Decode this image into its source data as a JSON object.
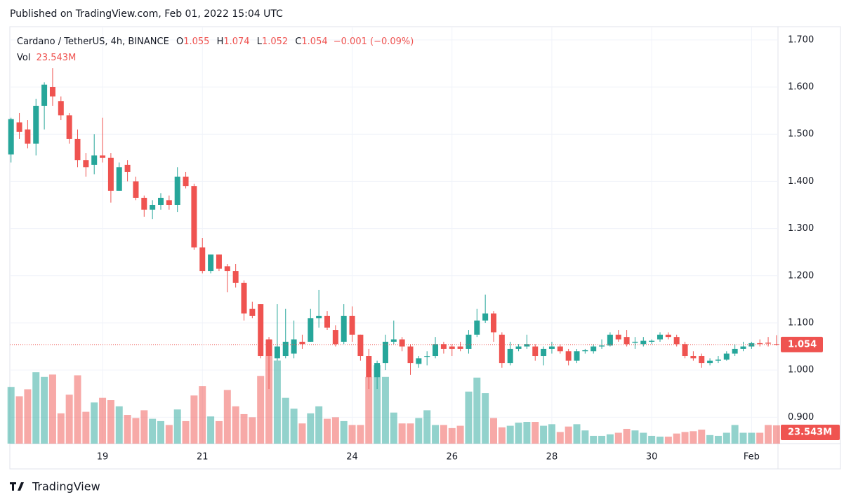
{
  "header": {
    "published": "Published on TradingView.com, Feb 01, 2022 15:04 UTC"
  },
  "footer": {
    "brand": "TradingView"
  },
  "chart_data": {
    "type": "candlestick",
    "legend": {
      "symbol": "Cardano / TetherUS, 4h, BINANCE",
      "labels": [
        "O",
        "H",
        "L",
        "C"
      ],
      "change": "−0.001 (−0.09%)",
      "volume_name": "Vol",
      "volume": "23.543M"
    },
    "up_color": "#26a69a",
    "down_color": "#ef5350",
    "grid": true,
    "categories": [
      null,
      null,
      null,
      null,
      null,
      null,
      null,
      null,
      null,
      null,
      null,
      "19",
      null,
      null,
      null,
      null,
      null,
      null,
      null,
      null,
      null,
      null,
      null,
      "21",
      null,
      null,
      null,
      null,
      null,
      null,
      null,
      null,
      null,
      null,
      null,
      null,
      null,
      null,
      null,
      null,
      null,
      "24",
      null,
      null,
      null,
      null,
      null,
      null,
      null,
      null,
      null,
      null,
      null,
      "26",
      null,
      null,
      null,
      null,
      null,
      null,
      null,
      null,
      null,
      null,
      null,
      "28",
      null,
      null,
      null,
      null,
      null,
      null,
      null,
      null,
      null,
      null,
      null,
      "30",
      null,
      null,
      null,
      null,
      null,
      null,
      null,
      null,
      null,
      null,
      null,
      "Feb",
      null,
      null,
      null
    ],
    "open": [
      1.457,
      1.525,
      1.51,
      1.48,
      1.56,
      1.6,
      1.57,
      1.54,
      1.49,
      1.445,
      1.435,
      1.455,
      1.45,
      1.38,
      1.435,
      1.4,
      1.365,
      1.34,
      1.35,
      1.36,
      1.35,
      1.41,
      1.39,
      1.26,
      1.21,
      1.245,
      1.22,
      1.21,
      1.185,
      1.13,
      1.14,
      1.065,
      1.025,
      1.03,
      1.035,
      1.06,
      1.06,
      1.11,
      1.115,
      1.085,
      1.06,
      1.115,
      1.075,
      1.03,
      0.985,
      1.015,
      1.06,
      1.065,
      1.05,
      1.013,
      1.028,
      1.03,
      1.055,
      1.05,
      1.05,
      1.045,
      1.075,
      1.105,
      1.12,
      1.075,
      1.015,
      1.045,
      1.05,
      1.05,
      1.03,
      1.045,
      1.05,
      1.04,
      1.02,
      1.04,
      1.04,
      1.05,
      1.052,
      1.075,
      1.07,
      1.058,
      1.055,
      1.06,
      1.065,
      1.075,
      1.07,
      1.055,
      1.03,
      1.03,
      1.015,
      1.02,
      1.022,
      1.035,
      1.045,
      1.05,
      1.057,
      1.058,
      1.055
    ],
    "high": [
      1.535,
      1.545,
      1.53,
      1.575,
      1.61,
      1.64,
      1.58,
      1.545,
      1.51,
      1.46,
      1.5,
      1.535,
      1.46,
      1.44,
      1.445,
      1.41,
      1.37,
      1.36,
      1.375,
      1.37,
      1.43,
      1.42,
      1.395,
      1.28,
      1.245,
      1.245,
      1.225,
      1.225,
      1.19,
      1.145,
      1.14,
      1.07,
      1.14,
      1.13,
      1.105,
      1.075,
      1.13,
      1.17,
      1.125,
      1.095,
      1.14,
      1.135,
      1.075,
      1.045,
      1.02,
      1.075,
      1.105,
      1.07,
      1.055,
      1.03,
      1.04,
      1.07,
      1.06,
      1.055,
      1.06,
      1.085,
      1.13,
      1.16,
      1.125,
      1.08,
      1.06,
      1.055,
      1.075,
      1.055,
      1.05,
      1.06,
      1.055,
      1.045,
      1.045,
      1.045,
      1.055,
      1.065,
      1.08,
      1.085,
      1.085,
      1.07,
      1.07,
      1.065,
      1.08,
      1.08,
      1.075,
      1.06,
      1.04,
      1.035,
      1.025,
      1.03,
      1.04,
      1.055,
      1.06,
      1.06,
      1.065,
      1.07,
      1.074
    ],
    "low": [
      1.44,
      1.49,
      1.47,
      1.455,
      1.51,
      1.56,
      1.53,
      1.48,
      1.43,
      1.41,
      1.415,
      1.44,
      1.355,
      1.38,
      1.4,
      1.36,
      1.325,
      1.32,
      1.34,
      1.34,
      1.335,
      1.385,
      1.255,
      1.205,
      1.205,
      1.21,
      1.165,
      1.175,
      1.105,
      1.11,
      1.025,
      0.96,
      1.02,
      1.025,
      1.025,
      1.045,
      1.06,
      1.09,
      1.085,
      1.05,
      1.055,
      1.06,
      1.02,
      0.96,
      0.96,
      1.0,
      1.055,
      1.04,
      0.99,
      1.005,
      1.01,
      1.025,
      1.035,
      1.03,
      1.04,
      1.035,
      1.07,
      1.1,
      1.06,
      1.005,
      1.01,
      1.04,
      1.045,
      1.02,
      1.01,
      1.035,
      1.035,
      1.01,
      1.015,
      1.035,
      1.035,
      1.045,
      1.05,
      1.06,
      1.05,
      1.045,
      1.05,
      1.055,
      1.06,
      1.065,
      1.05,
      1.025,
      1.02,
      1.005,
      1.01,
      1.015,
      1.02,
      1.03,
      1.04,
      1.045,
      1.05,
      1.05,
      1.052
    ],
    "close": [
      1.532,
      1.505,
      1.48,
      1.56,
      1.605,
      1.58,
      1.54,
      1.49,
      1.445,
      1.43,
      1.455,
      1.45,
      1.38,
      1.43,
      1.42,
      1.365,
      1.34,
      1.35,
      1.365,
      1.35,
      1.41,
      1.39,
      1.26,
      1.21,
      1.245,
      1.215,
      1.21,
      1.185,
      1.12,
      1.115,
      1.03,
      1.03,
      1.05,
      1.06,
      1.065,
      1.055,
      1.11,
      1.115,
      1.09,
      1.055,
      1.115,
      1.075,
      1.03,
      0.985,
      1.015,
      1.06,
      1.065,
      1.05,
      1.015,
      1.025,
      1.03,
      1.055,
      1.045,
      1.045,
      1.045,
      1.075,
      1.105,
      1.12,
      1.08,
      1.015,
      1.045,
      1.05,
      1.055,
      1.03,
      1.045,
      1.05,
      1.04,
      1.02,
      1.04,
      1.042,
      1.05,
      1.052,
      1.075,
      1.065,
      1.055,
      1.06,
      1.062,
      1.062,
      1.075,
      1.07,
      1.055,
      1.03,
      1.025,
      1.015,
      1.02,
      1.022,
      1.035,
      1.045,
      1.05,
      1.057,
      1.055,
      1.056,
      1.054
    ],
    "volume": [
      73,
      61,
      70,
      92,
      86,
      89,
      39,
      63,
      88,
      41,
      53,
      59,
      56,
      48,
      37,
      33,
      43,
      32,
      29,
      24,
      44,
      29,
      62,
      74,
      35,
      29,
      69,
      48,
      38,
      34,
      87,
      134,
      107,
      59,
      45,
      26,
      39,
      48,
      32,
      34,
      29,
      24,
      24,
      86,
      101,
      86,
      40,
      26,
      26,
      33,
      43,
      24,
      24,
      20,
      23,
      67,
      85,
      65,
      33,
      21,
      23,
      27,
      28,
      28,
      23,
      25,
      15,
      22,
      25,
      17,
      10,
      10,
      12,
      14,
      19,
      17,
      14,
      10,
      9,
      9,
      13,
      15,
      16,
      18,
      11,
      10,
      14,
      24,
      14,
      14,
      14,
      24,
      23.543
    ],
    "ylim": [
      0.844,
      1.728
    ],
    "volume_lim": [
      0,
      150
    ],
    "yticks": [
      {
        "value": 0.9,
        "label": "0.900"
      },
      {
        "value": 1.0,
        "label": "1.000"
      },
      {
        "value": 1.1,
        "label": "1.100"
      },
      {
        "value": 1.2,
        "label": "1.200"
      },
      {
        "value": 1.3,
        "label": "1.300"
      },
      {
        "value": 1.4,
        "label": "1.400"
      },
      {
        "value": 1.5,
        "label": "1.500"
      },
      {
        "value": 1.6,
        "label": "1.600"
      },
      {
        "value": 1.7,
        "label": "1.700"
      }
    ]
  }
}
